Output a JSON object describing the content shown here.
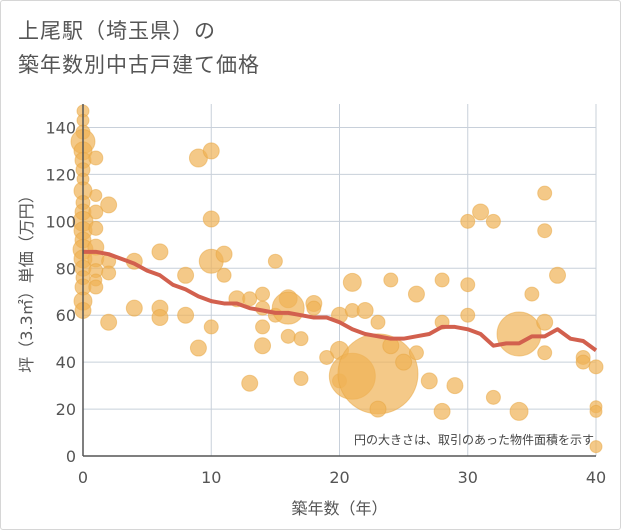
{
  "title_line1": "上尾駅（埼玉県）の",
  "title_line2": "築年数別中古戸建て価格",
  "chart_data": {
    "type": "scatter",
    "title": "上尾駅（埼玉県）の築年数別中古戸建て価格",
    "xlabel": "築年数（年）",
    "ylabel": "坪（3.3㎡）単価（万円）",
    "xlim": [
      0,
      40
    ],
    "ylim": [
      0,
      150
    ],
    "x_ticks": [
      0,
      10,
      20,
      30,
      40
    ],
    "y_ticks": [
      0,
      20,
      40,
      60,
      80,
      100,
      120,
      140
    ],
    "grid": true,
    "annotation": "円の大きさは、取引のあった物件面積を示す",
    "colors": {
      "bubble": "#f0b255",
      "line": "#d2604e",
      "grid": "#c8d0da",
      "axis": "#555555"
    },
    "bubbles": [
      {
        "x": 0,
        "y": 147,
        "s": 6
      },
      {
        "x": 0,
        "y": 143,
        "s": 6
      },
      {
        "x": 0,
        "y": 138,
        "s": 7
      },
      {
        "x": 0,
        "y": 134,
        "s": 12
      },
      {
        "x": 0,
        "y": 130,
        "s": 9
      },
      {
        "x": 0,
        "y": 126,
        "s": 8
      },
      {
        "x": 0,
        "y": 122,
        "s": 7
      },
      {
        "x": 0,
        "y": 118,
        "s": 6
      },
      {
        "x": 0,
        "y": 113,
        "s": 9
      },
      {
        "x": 0,
        "y": 108,
        "s": 7
      },
      {
        "x": 0,
        "y": 104,
        "s": 8
      },
      {
        "x": 0,
        "y": 100,
        "s": 10
      },
      {
        "x": 0,
        "y": 96,
        "s": 9
      },
      {
        "x": 0,
        "y": 92,
        "s": 8
      },
      {
        "x": 0,
        "y": 88,
        "s": 10
      },
      {
        "x": 0,
        "y": 84,
        "s": 9
      },
      {
        "x": 0,
        "y": 80,
        "s": 8
      },
      {
        "x": 0,
        "y": 76,
        "s": 7
      },
      {
        "x": 0,
        "y": 72,
        "s": 8
      },
      {
        "x": 0,
        "y": 66,
        "s": 9
      },
      {
        "x": 0,
        "y": 62,
        "s": 8
      },
      {
        "x": 1,
        "y": 127,
        "s": 7
      },
      {
        "x": 1,
        "y": 111,
        "s": 6
      },
      {
        "x": 1,
        "y": 104,
        "s": 7
      },
      {
        "x": 1,
        "y": 97,
        "s": 7
      },
      {
        "x": 1,
        "y": 89,
        "s": 8
      },
      {
        "x": 1,
        "y": 84,
        "s": 8
      },
      {
        "x": 1,
        "y": 79,
        "s": 7
      },
      {
        "x": 1,
        "y": 75,
        "s": 6
      },
      {
        "x": 1,
        "y": 72,
        "s": 7
      },
      {
        "x": 2,
        "y": 107,
        "s": 8
      },
      {
        "x": 2,
        "y": 83,
        "s": 7
      },
      {
        "x": 2,
        "y": 78,
        "s": 7
      },
      {
        "x": 2,
        "y": 57,
        "s": 8
      },
      {
        "x": 4,
        "y": 83,
        "s": 8
      },
      {
        "x": 4,
        "y": 63,
        "s": 8
      },
      {
        "x": 6,
        "y": 87,
        "s": 8
      },
      {
        "x": 6,
        "y": 63,
        "s": 8
      },
      {
        "x": 6,
        "y": 59,
        "s": 8
      },
      {
        "x": 8,
        "y": 77,
        "s": 8
      },
      {
        "x": 8,
        "y": 60,
        "s": 8
      },
      {
        "x": 9,
        "y": 127,
        "s": 9
      },
      {
        "x": 9,
        "y": 46,
        "s": 8
      },
      {
        "x": 10,
        "y": 130,
        "s": 8
      },
      {
        "x": 10,
        "y": 101,
        "s": 8
      },
      {
        "x": 10,
        "y": 83,
        "s": 12
      },
      {
        "x": 10,
        "y": 55,
        "s": 7
      },
      {
        "x": 11,
        "y": 86,
        "s": 8
      },
      {
        "x": 11,
        "y": 77,
        "s": 7
      },
      {
        "x": 12,
        "y": 67,
        "s": 8
      },
      {
        "x": 13,
        "y": 67,
        "s": 7
      },
      {
        "x": 13,
        "y": 31,
        "s": 8
      },
      {
        "x": 14,
        "y": 69,
        "s": 7
      },
      {
        "x": 14,
        "y": 63,
        "s": 7
      },
      {
        "x": 14,
        "y": 55,
        "s": 7
      },
      {
        "x": 14,
        "y": 47,
        "s": 8
      },
      {
        "x": 15,
        "y": 83,
        "s": 7
      },
      {
        "x": 15,
        "y": 60,
        "s": 7
      },
      {
        "x": 16,
        "y": 67,
        "s": 9
      },
      {
        "x": 16,
        "y": 63,
        "s": 16
      },
      {
        "x": 16,
        "y": 51,
        "s": 7
      },
      {
        "x": 17,
        "y": 50,
        "s": 7
      },
      {
        "x": 17,
        "y": 33,
        "s": 7
      },
      {
        "x": 18,
        "y": 65,
        "s": 8
      },
      {
        "x": 18,
        "y": 63,
        "s": 7
      },
      {
        "x": 19,
        "y": 42,
        "s": 7
      },
      {
        "x": 20,
        "y": 60,
        "s": 8
      },
      {
        "x": 20,
        "y": 45,
        "s": 9
      },
      {
        "x": 20,
        "y": 32,
        "s": 7
      },
      {
        "x": 21,
        "y": 74,
        "s": 9
      },
      {
        "x": 21,
        "y": 62,
        "s": 7
      },
      {
        "x": 21,
        "y": 34,
        "s": 23
      },
      {
        "x": 22,
        "y": 62,
        "s": 8
      },
      {
        "x": 23,
        "y": 57,
        "s": 7
      },
      {
        "x": 23,
        "y": 35,
        "s": 40
      },
      {
        "x": 23,
        "y": 20,
        "s": 8
      },
      {
        "x": 24,
        "y": 75,
        "s": 7
      },
      {
        "x": 24,
        "y": 47,
        "s": 8
      },
      {
        "x": 25,
        "y": 40,
        "s": 8
      },
      {
        "x": 26,
        "y": 69,
        "s": 8
      },
      {
        "x": 26,
        "y": 44,
        "s": 7
      },
      {
        "x": 27,
        "y": 32,
        "s": 8
      },
      {
        "x": 28,
        "y": 75,
        "s": 7
      },
      {
        "x": 28,
        "y": 57,
        "s": 7
      },
      {
        "x": 28,
        "y": 19,
        "s": 8
      },
      {
        "x": 29,
        "y": 30,
        "s": 8
      },
      {
        "x": 30,
        "y": 100,
        "s": 7
      },
      {
        "x": 30,
        "y": 73,
        "s": 7
      },
      {
        "x": 30,
        "y": 60,
        "s": 7
      },
      {
        "x": 31,
        "y": 104,
        "s": 8
      },
      {
        "x": 32,
        "y": 100,
        "s": 7
      },
      {
        "x": 32,
        "y": 25,
        "s": 7
      },
      {
        "x": 34,
        "y": 52,
        "s": 22
      },
      {
        "x": 34,
        "y": 19,
        "s": 9
      },
      {
        "x": 35,
        "y": 69,
        "s": 7
      },
      {
        "x": 36,
        "y": 112,
        "s": 7
      },
      {
        "x": 36,
        "y": 96,
        "s": 7
      },
      {
        "x": 36,
        "y": 57,
        "s": 8
      },
      {
        "x": 36,
        "y": 44,
        "s": 7
      },
      {
        "x": 37,
        "y": 77,
        "s": 8
      },
      {
        "x": 39,
        "y": 42,
        "s": 7
      },
      {
        "x": 39,
        "y": 40,
        "s": 7
      },
      {
        "x": 40,
        "y": 38,
        "s": 7
      },
      {
        "x": 40,
        "y": 21,
        "s": 6
      },
      {
        "x": 40,
        "y": 19,
        "s": 6
      },
      {
        "x": 40,
        "y": 4,
        "s": 6
      }
    ],
    "trend_line": {
      "x": [
        0,
        1,
        2,
        3,
        4,
        5,
        6,
        7,
        8,
        9,
        10,
        11,
        12,
        13,
        14,
        15,
        16,
        17,
        18,
        19,
        20,
        21,
        22,
        23,
        24,
        25,
        26,
        27,
        28,
        29,
        30,
        31,
        32,
        33,
        34,
        35,
        36,
        37,
        38,
        39,
        40
      ],
      "y": [
        87,
        87,
        86,
        84,
        82,
        79,
        77,
        73,
        71,
        68,
        66,
        65,
        65,
        63,
        62,
        61,
        61,
        60,
        59,
        59,
        57,
        54,
        52,
        51,
        50,
        50,
        51,
        52,
        55,
        55,
        54,
        52,
        47,
        48,
        48,
        51,
        51,
        54,
        50,
        49,
        45
      ]
    }
  }
}
